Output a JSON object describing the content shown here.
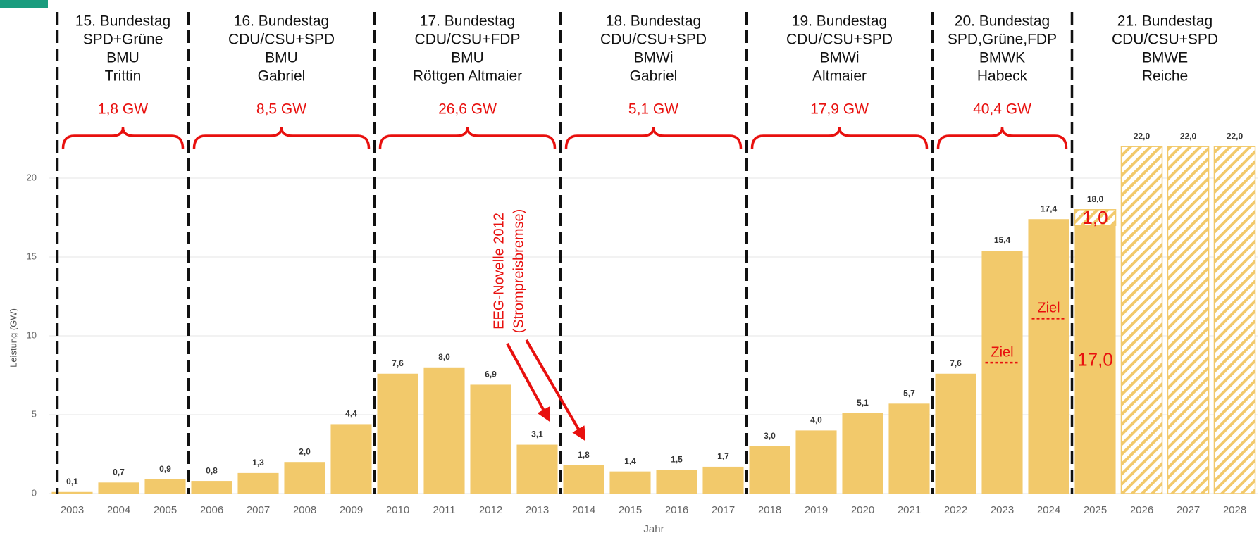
{
  "chart_data": {
    "type": "bar",
    "y_label": "Leistung (GW)",
    "x_label": "Jahr",
    "categories": [
      "2003",
      "2004",
      "2005",
      "2006",
      "2007",
      "2008",
      "2009",
      "2010",
      "2011",
      "2012",
      "2013",
      "2014",
      "2015",
      "2016",
      "2017",
      "2018",
      "2019",
      "2020",
      "2021",
      "2022",
      "2023",
      "2024",
      "2025",
      "2026",
      "2027",
      "2028"
    ],
    "series": [
      {
        "color": "#f2c96b",
        "hatched": false,
        "values": [
          0.1,
          0.7,
          0.9,
          0.8,
          1.3,
          2.0,
          4.4,
          7.6,
          8.0,
          6.9,
          3.1,
          1.8,
          1.4,
          1.5,
          1.7,
          3.0,
          4.0,
          5.1,
          5.7,
          7.6,
          15.4,
          17.4,
          17.0,
          null,
          null,
          null
        ],
        "value_labels": [
          "0,1",
          "0,7",
          "0,9",
          "0,8",
          "1,3",
          "2,0",
          "4,4",
          "7,6",
          "8,0",
          "6,9",
          "3,1",
          "1,8",
          "1,4",
          "1,5",
          "1,7",
          "3,0",
          "4,0",
          "5,1",
          "5,7",
          "7,6",
          "15,4",
          "17,4",
          "17,0",
          null,
          null,
          null
        ]
      },
      {
        "color": "#f2c96b",
        "hatched": true,
        "values": [
          null,
          null,
          null,
          null,
          null,
          null,
          null,
          null,
          null,
          null,
          null,
          null,
          null,
          null,
          null,
          null,
          null,
          null,
          null,
          null,
          null,
          null,
          1.0,
          22.0,
          22.0,
          22.0
        ],
        "value_labels": [
          null,
          null,
          null,
          null,
          null,
          null,
          null,
          null,
          null,
          null,
          null,
          null,
          null,
          null,
          null,
          null,
          null,
          null,
          null,
          null,
          null,
          null,
          "1,0",
          "22,0",
          "22,0",
          "22,0"
        ]
      }
    ],
    "emphasis_category": "2025",
    "total": {
      "category": "2025",
      "value": 18.0,
      "label": "18,0"
    },
    "ylim": [
      0,
      25
    ],
    "yticks": [
      0,
      5,
      10,
      15,
      20
    ],
    "grid": true,
    "periods": [
      {
        "lines": [
          "15. Bundestag",
          "SPD+Grüne",
          "BMU",
          "Trittin"
        ],
        "total": "1,8 GW",
        "first": "2003",
        "last": "2005"
      },
      {
        "lines": [
          "16. Bundestag",
          "CDU/CSU+SPD",
          "BMU",
          "Gabriel"
        ],
        "total": "8,5 GW",
        "first": "2006",
        "last": "2009"
      },
      {
        "lines": [
          "17. Bundestag",
          "CDU/CSU+FDP",
          "BMU",
          "Röttgen    Altmaier"
        ],
        "total": "26,6 GW",
        "first": "2010",
        "last": "2013"
      },
      {
        "lines": [
          "18. Bundestag",
          "CDU/CSU+SPD",
          "BMWi",
          "Gabriel"
        ],
        "total": "5,1 GW",
        "first": "2014",
        "last": "2017"
      },
      {
        "lines": [
          "19. Bundestag",
          "CDU/CSU+SPD",
          "BMWi",
          "Altmaier"
        ],
        "total": "17,9 GW",
        "first": "2018",
        "last": "2021"
      },
      {
        "lines": [
          "20. Bundestag",
          "SPD,Grüne,FDP",
          "BMWK",
          "Habeck"
        ],
        "total": "40,4 GW",
        "first": "2022",
        "last": "2024"
      },
      {
        "lines": [
          "21. Bundestag",
          "CDU/CSU+SPD",
          "BMWE",
          "Reiche"
        ],
        "total": null,
        "first": "2025",
        "last": "2028"
      }
    ],
    "targets": [
      {
        "category": "2023",
        "value": 8.3,
        "label": "Ziel"
      },
      {
        "category": "2024",
        "value": 11.1,
        "label": "Ziel"
      }
    ],
    "annotation": [
      "EEG-Novelle 2012",
      "(Strompreisbremse)"
    ]
  }
}
